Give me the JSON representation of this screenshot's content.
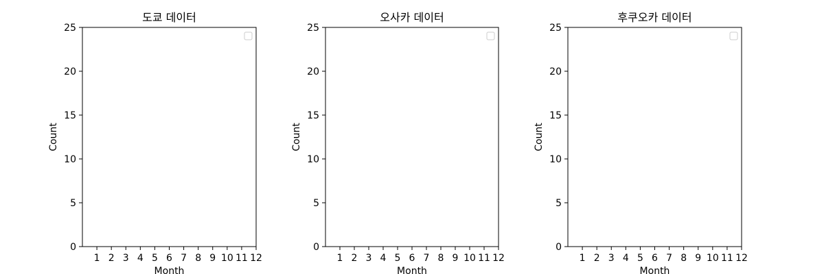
{
  "chart_data": [
    {
      "type": "line",
      "title": "도쿄 데이터",
      "xlabel": "Month",
      "ylabel": "Count",
      "x_ticks": [
        1,
        2,
        3,
        4,
        5,
        6,
        7,
        8,
        9,
        10,
        11,
        12
      ],
      "y_ticks": [
        0,
        5,
        10,
        15,
        20,
        25
      ],
      "xlim": [
        0,
        12
      ],
      "ylim": [
        0,
        25
      ],
      "grid": false,
      "legend": "top-right",
      "series": []
    },
    {
      "type": "line",
      "title": "오사카 데이터",
      "xlabel": "Month",
      "ylabel": "Count",
      "x_ticks": [
        1,
        2,
        3,
        4,
        5,
        6,
        7,
        8,
        9,
        10,
        11,
        12
      ],
      "y_ticks": [
        0,
        5,
        10,
        15,
        20,
        25
      ],
      "xlim": [
        0,
        12
      ],
      "ylim": [
        0,
        25
      ],
      "grid": false,
      "legend": "top-right",
      "series": []
    },
    {
      "type": "line",
      "title": "후쿠오카 데이터",
      "xlabel": "Month",
      "ylabel": "Count",
      "x_ticks": [
        1,
        2,
        3,
        4,
        5,
        6,
        7,
        8,
        9,
        10,
        11,
        12
      ],
      "y_ticks": [
        0,
        5,
        10,
        15,
        20,
        25
      ],
      "xlim": [
        0,
        12
      ],
      "ylim": [
        0,
        25
      ],
      "grid": false,
      "legend": "top-right",
      "series": []
    }
  ]
}
